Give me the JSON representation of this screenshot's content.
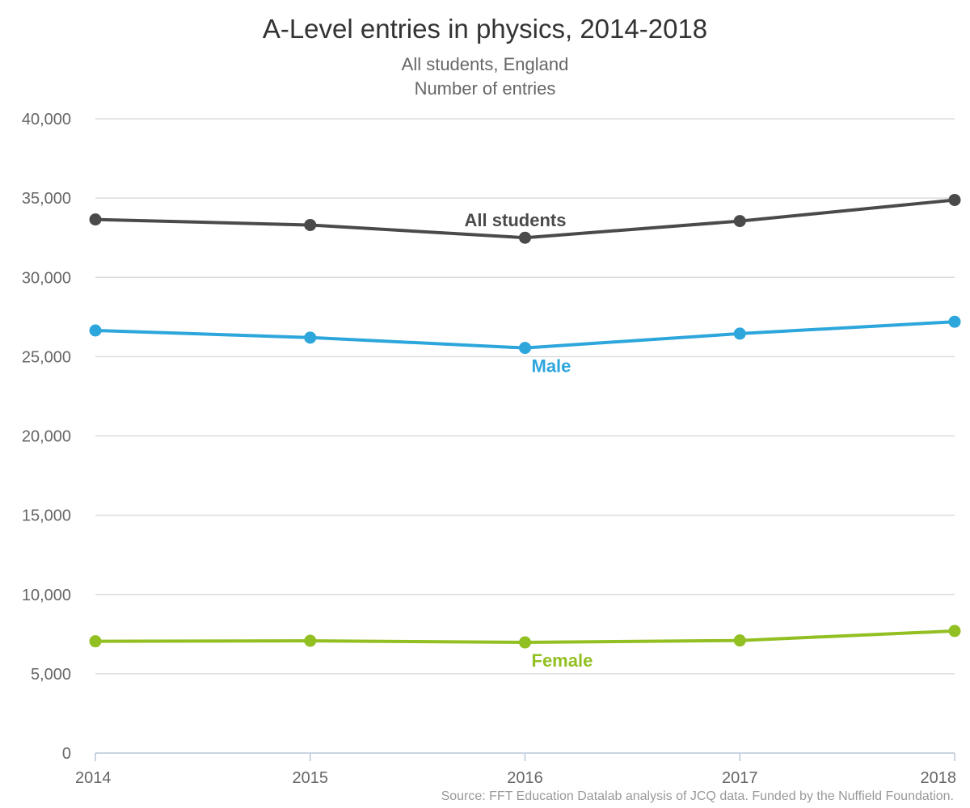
{
  "chart_data": {
    "type": "line",
    "title": "A-Level entries in physics, 2014-2018",
    "subtitle_lines": [
      "All students, England",
      "Number of entries"
    ],
    "x": [
      "2014",
      "2015",
      "2016",
      "2017",
      "2018"
    ],
    "ylim": [
      0,
      40000
    ],
    "yticks": [
      0,
      5000,
      10000,
      15000,
      20000,
      25000,
      30000,
      35000,
      40000
    ],
    "ytick_labels": [
      "0",
      "5,000",
      "10,000",
      "15,000",
      "20,000",
      "25,000",
      "30,000",
      "35,000",
      "40,000"
    ],
    "grid": true,
    "series": [
      {
        "name": "All students",
        "color": "#4a4a4a",
        "values": [
          33650,
          33300,
          32500,
          33550,
          34880
        ],
        "label_at_index": 2,
        "label_position": "above"
      },
      {
        "name": "Male",
        "color": "#2da6dc",
        "values": [
          26650,
          26200,
          25550,
          26450,
          27200
        ],
        "label_at_index": 2,
        "label_position": "below"
      },
      {
        "name": "Female",
        "color": "#92bf21",
        "values": [
          7050,
          7080,
          6980,
          7100,
          7700
        ],
        "label_at_index": 2,
        "label_position": "below"
      }
    ],
    "source": "Source: FFT Education Datalab analysis of JCQ data. Funded by the Nuffield Foundation."
  }
}
